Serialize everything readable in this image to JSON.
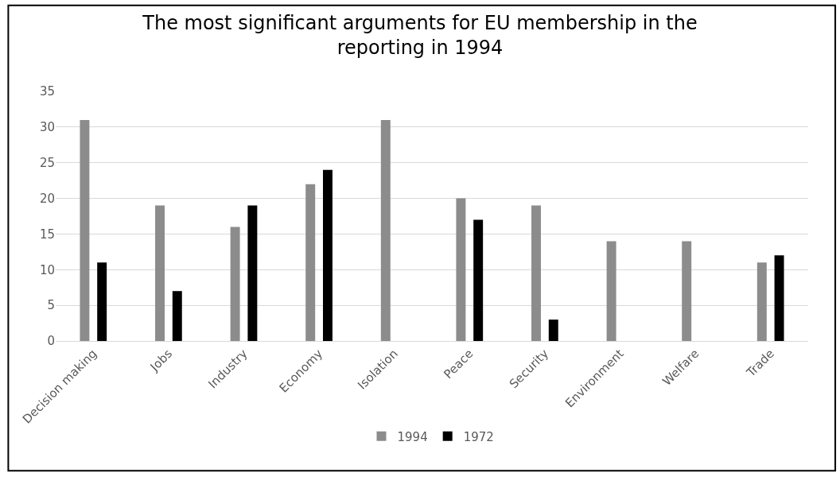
{
  "chart_data": {
    "type": "bar",
    "title": "The most significant arguments for EU membership in the reporting in 1994",
    "categories": [
      "Decision making",
      "Jobs",
      "Industry",
      "Economy",
      "Isolation",
      "Peace",
      "Security",
      "Environment",
      "Welfare",
      "Trade"
    ],
    "series": [
      {
        "name": "1994",
        "color": "#8c8c8c",
        "values": [
          31,
          19,
          16,
          22,
          31,
          20,
          19,
          14,
          14,
          11
        ]
      },
      {
        "name": "1972",
        "color": "#000000",
        "values": [
          11,
          7,
          19,
          24,
          null,
          17,
          3,
          null,
          null,
          12
        ]
      }
    ],
    "ylim": [
      0,
      35
    ],
    "yticks": [
      0,
      5,
      10,
      15,
      20,
      25,
      30,
      35
    ],
    "grid": "y",
    "legend": "bottom"
  }
}
